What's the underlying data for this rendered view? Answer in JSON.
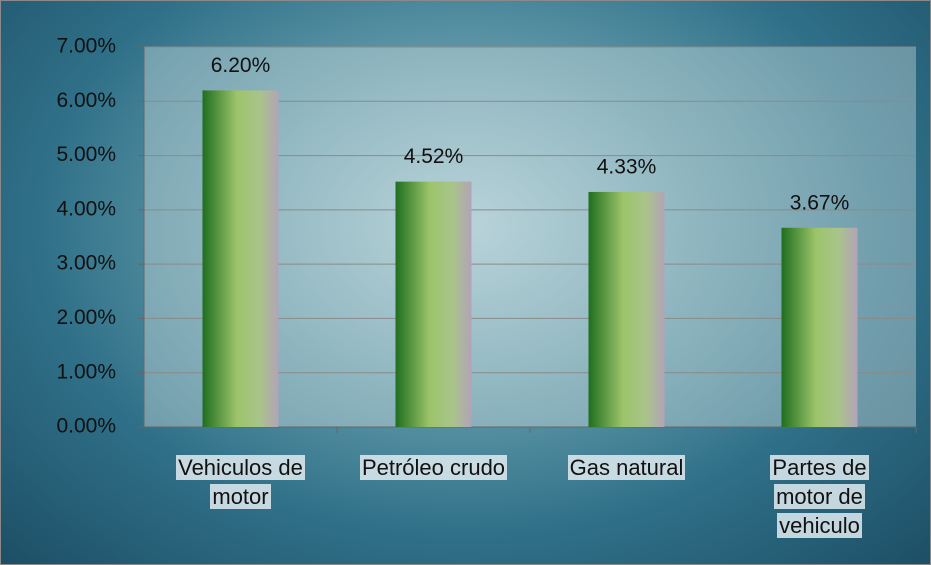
{
  "chart_data": {
    "type": "bar",
    "categories": [
      "Vehiculos de motor",
      "Petróleo crudo",
      "Gas natural",
      "Partes de motor de vehiculo"
    ],
    "values": [
      6.2,
      4.52,
      4.33,
      3.67
    ],
    "value_labels": [
      "6.20%",
      "4.52%",
      "4.33%",
      "3.67%"
    ],
    "ylim": [
      0,
      7
    ],
    "yticks": [
      {
        "value": 0,
        "label": "0.00%"
      },
      {
        "value": 1,
        "label": "1.00%"
      },
      {
        "value": 2,
        "label": "2.00%"
      },
      {
        "value": 3,
        "label": "3.00%"
      },
      {
        "value": 4,
        "label": "4.00%"
      },
      {
        "value": 5,
        "label": "5.00%"
      },
      {
        "value": 6,
        "label": "6.00%"
      },
      {
        "value": 7,
        "label": "7.00%"
      }
    ],
    "grid": true,
    "color": "#8fb85a"
  }
}
